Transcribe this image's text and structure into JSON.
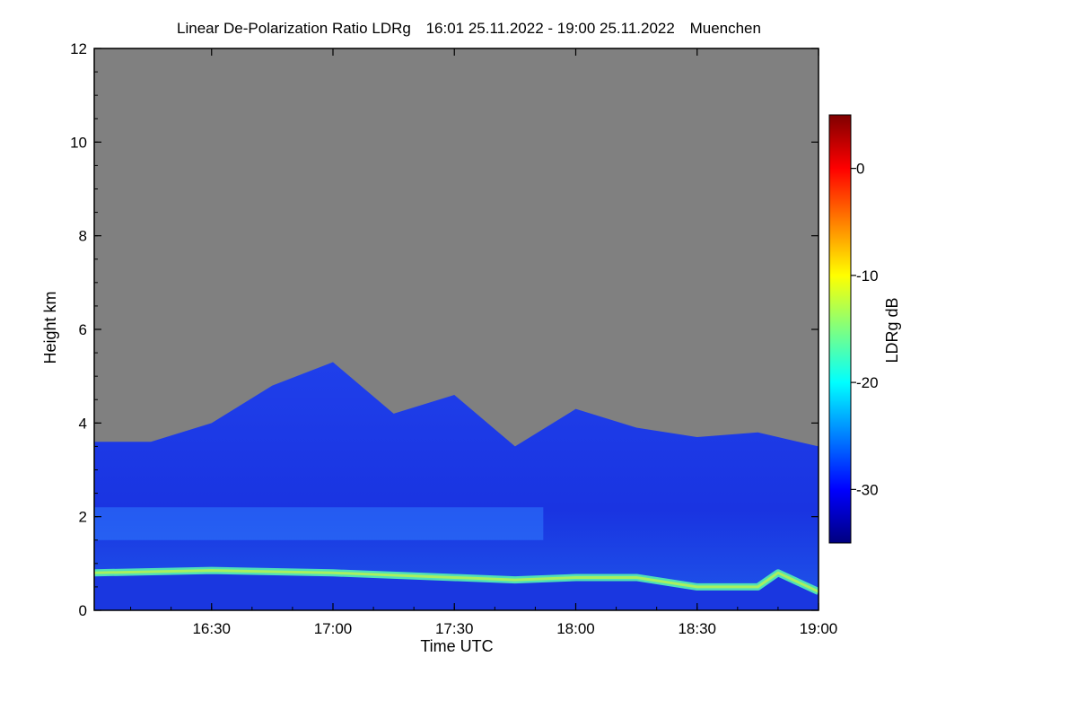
{
  "title": {
    "main": "Linear De-Polarization Ratio LDRg",
    "period": "16:01 25.11.2022 - 19:00 25.11.2022",
    "location": "Muenchen"
  },
  "chart_data": {
    "type": "heatmap",
    "variable": "LDRg",
    "xlabel": "Time UTC",
    "ylabel": "Height km",
    "colorbar_label": "LDRg dB",
    "x_range": [
      "16:01",
      "19:00"
    ],
    "x_ticks": [
      "16:30",
      "17:00",
      "17:30",
      "18:00",
      "18:30",
      "19:00"
    ],
    "ylim": [
      0,
      12
    ],
    "y_ticks": [
      0,
      2,
      4,
      6,
      8,
      10,
      12
    ],
    "clim": [
      -35,
      5
    ],
    "colorbar_ticks": [
      0,
      -10,
      -20,
      -30
    ],
    "colormap": "jet",
    "background_color": "#808080",
    "layers": [
      {
        "name": "cloud_top_km",
        "times": [
          "16:01",
          "16:15",
          "16:30",
          "16:45",
          "17:00",
          "17:15",
          "17:30",
          "17:45",
          "18:00",
          "18:15",
          "18:30",
          "18:45",
          "19:00"
        ],
        "values": [
          3.6,
          3.6,
          4.0,
          4.8,
          5.3,
          4.2,
          4.6,
          3.5,
          4.3,
          3.9,
          3.7,
          3.8,
          3.5
        ]
      },
      {
        "name": "enhanced_layer_km",
        "level": 1.9,
        "ldr_db": -24
      },
      {
        "name": "boundary_layer_top_km",
        "times": [
          "16:01",
          "16:30",
          "17:00",
          "17:30",
          "17:45",
          "18:00",
          "18:15",
          "18:30",
          "18:45",
          "18:50",
          "19:00"
        ],
        "values": [
          0.8,
          0.85,
          0.8,
          0.7,
          0.65,
          0.7,
          0.7,
          0.5,
          0.5,
          0.8,
          0.4
        ],
        "ldr_db": -20
      }
    ]
  }
}
